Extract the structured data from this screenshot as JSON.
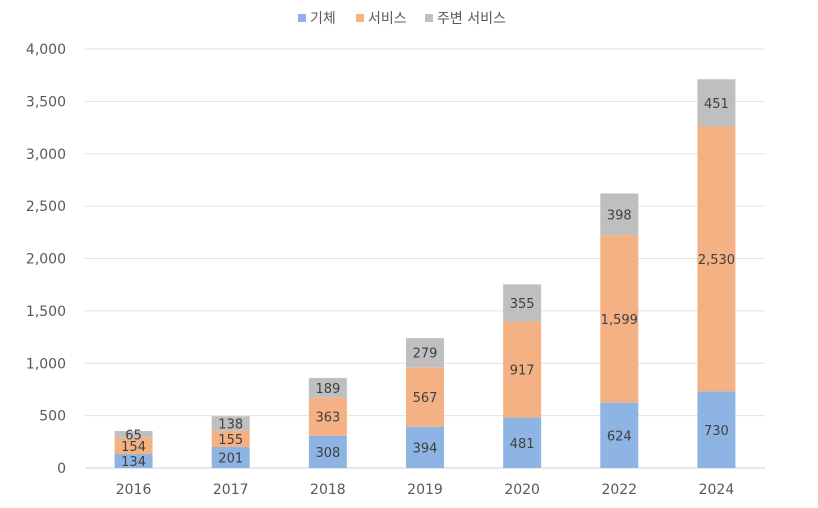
{
  "chart_data": {
    "type": "bar",
    "stacked": true,
    "categories": [
      "2016",
      "2017",
      "2018",
      "2019",
      "2020",
      "2022",
      "2024"
    ],
    "series": [
      {
        "name": "기체",
        "color": "#8DB4E2",
        "values": [
          134,
          201,
          308,
          394,
          481,
          624,
          730
        ]
      },
      {
        "name": "서비스",
        "color": "#F4B183",
        "values": [
          154,
          155,
          363,
          567,
          917,
          1599,
          2530
        ]
      },
      {
        "name": "주변 서비스",
        "color": "#BFBFBF",
        "values": [
          65,
          138,
          189,
          279,
          355,
          398,
          451
        ]
      }
    ],
    "data_labels": [
      [
        "134",
        "201",
        "308",
        "394",
        "481",
        "624",
        "730"
      ],
      [
        "154",
        "155",
        "363",
        "567",
        "917",
        "1,599",
        "2,530"
      ],
      [
        "65",
        "138",
        "189",
        "279",
        "355",
        "398",
        "451"
      ]
    ],
    "y_ticks": [
      "0",
      "500",
      "1,000",
      "1,500",
      "2,000",
      "2,500",
      "3,000",
      "3,500",
      "4,000"
    ],
    "ylim": [
      0,
      4000
    ],
    "grid": true,
    "legend_position": "top-center"
  }
}
